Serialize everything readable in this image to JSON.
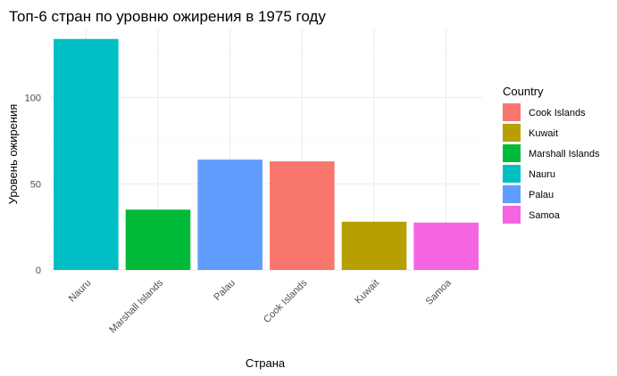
{
  "chart_data": {
    "type": "bar",
    "title": "Топ-6 стран по уровню ожирения в 1975 году",
    "xlabel": "Страна",
    "ylabel": "Уровень ожирения",
    "categories": [
      "Nauru",
      "Marshall Islands",
      "Palau",
      "Cook Islands",
      "Kuwait",
      "Samoa"
    ],
    "values": [
      134,
      35,
      64,
      63,
      28,
      27.5
    ],
    "ylim": [
      0,
      140
    ],
    "yticks": [
      0,
      50,
      100
    ],
    "grid": true,
    "legend": {
      "title": "Country",
      "placement": "right",
      "items": [
        "Cook Islands",
        "Kuwait",
        "Marshall Islands",
        "Nauru",
        "Palau",
        "Samoa"
      ]
    },
    "colors": {
      "Cook Islands": "#F8766D",
      "Kuwait": "#B79F00",
      "Marshall Islands": "#00BA38",
      "Nauru": "#00BFC4",
      "Palau": "#619CFF",
      "Samoa": "#F564E3"
    }
  }
}
